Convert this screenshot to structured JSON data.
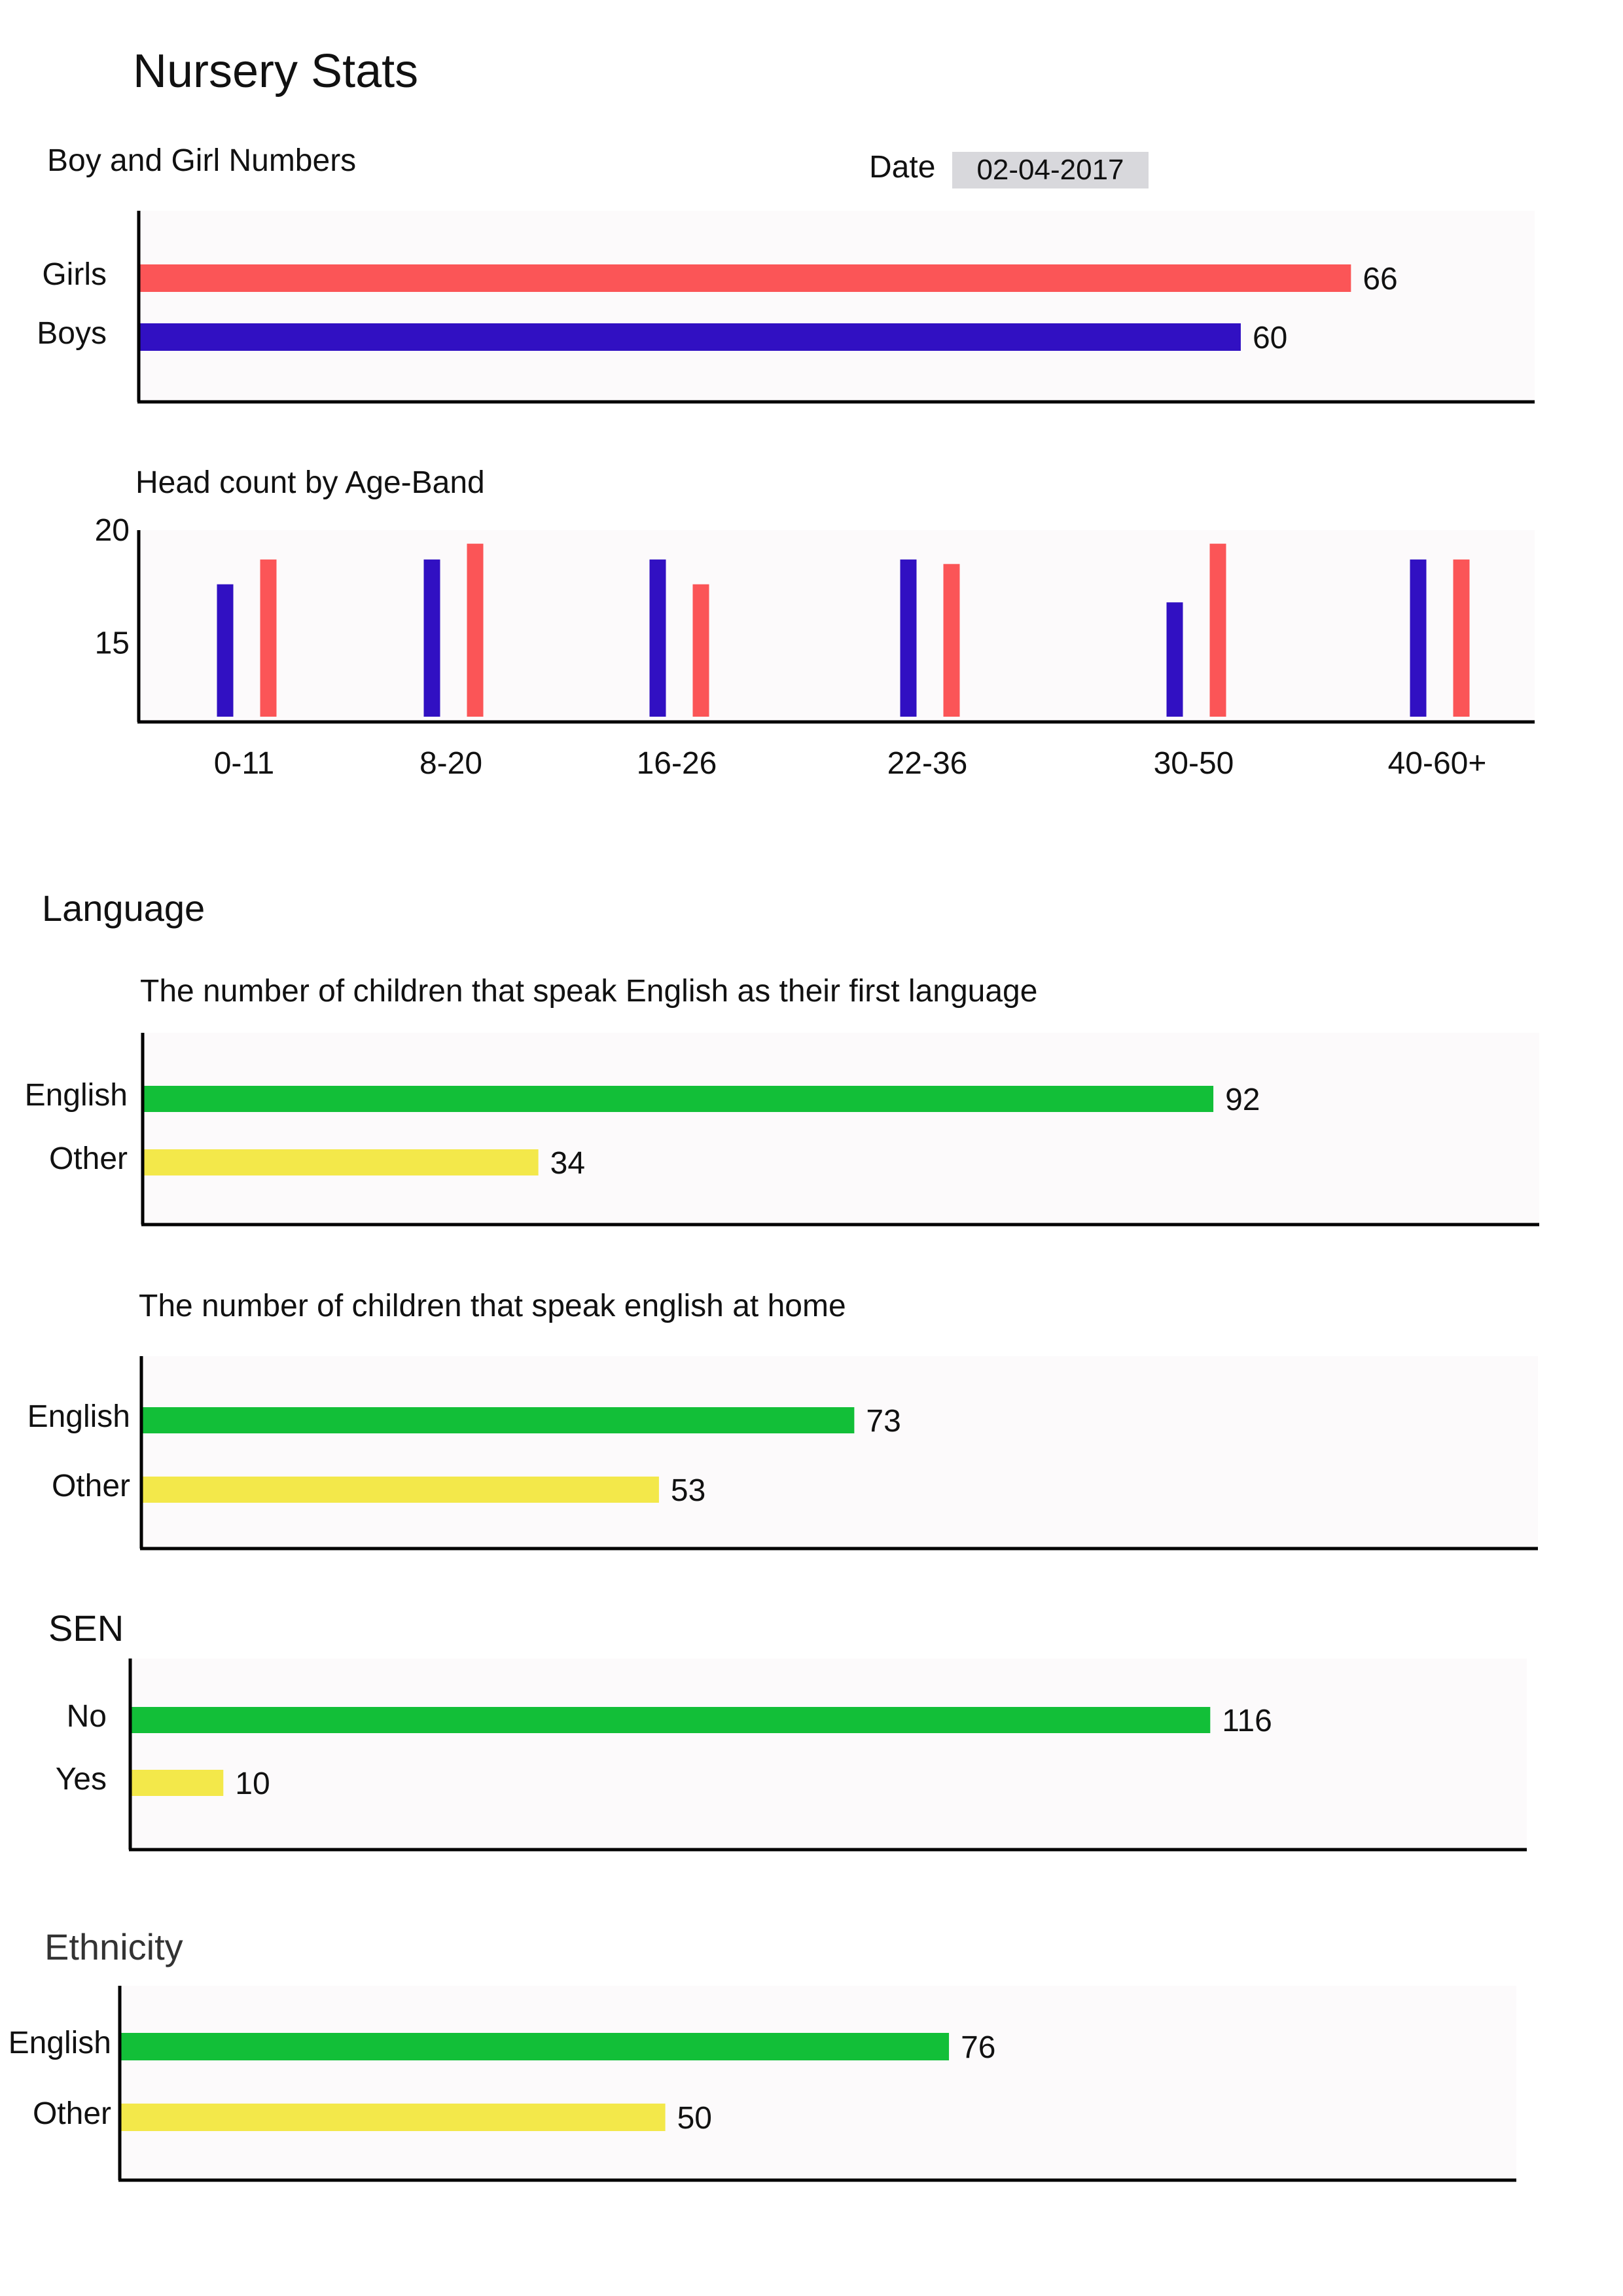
{
  "title": "Nursery Stats",
  "date": {
    "label": "Date",
    "value": "02-04-2017"
  },
  "sections": {
    "language": "Language",
    "sen": "SEN",
    "ethnicity": "Ethnicity"
  },
  "colors": {
    "girls": "#fb5557",
    "boys": "#3110c2",
    "green": "#12bf38",
    "yellow": "#f3e84a",
    "plot_bg": "#fcfafb"
  },
  "chart_data": [
    {
      "id": "gender",
      "type": "bar",
      "orientation": "horizontal",
      "title": "Boy and Girl Numbers",
      "categories": [
        "Girls",
        "Boys"
      ],
      "values": [
        66,
        60
      ],
      "colors": [
        "#fb5557",
        "#3110c2"
      ],
      "xlim": [
        0,
        76
      ]
    },
    {
      "id": "ageband",
      "type": "bar",
      "orientation": "vertical",
      "title": "Head count by Age-Band",
      "categories": [
        "0-11",
        "8-20",
        "16-26",
        "22-36",
        "30-50",
        "40-60+"
      ],
      "series": [
        {
          "color": "#3110c2",
          "values": [
            17.6,
            18.7,
            18.7,
            18.7,
            16.8,
            18.7
          ]
        },
        {
          "color": "#fb5557",
          "values": [
            18.7,
            19.4,
            17.6,
            18.5,
            19.4,
            18.7
          ]
        }
      ],
      "yticks": [
        15,
        20
      ],
      "ylim": [
        11.5,
        20
      ],
      "grid": false
    },
    {
      "id": "first_language",
      "type": "bar",
      "orientation": "horizontal",
      "title": "The number of children that speak English as their first language",
      "categories": [
        "English",
        "Other"
      ],
      "values": [
        92,
        34
      ],
      "colors": [
        "#12bf38",
        "#f3e84a"
      ],
      "xlim": [
        0,
        120
      ]
    },
    {
      "id": "home_language",
      "type": "bar",
      "orientation": "horizontal",
      "title": "The number of children that speak english at home",
      "categories": [
        "English",
        "Other"
      ],
      "values": [
        73,
        53
      ],
      "colors": [
        "#12bf38",
        "#f3e84a"
      ],
      "xlim": [
        0,
        143
      ]
    },
    {
      "id": "sen",
      "type": "bar",
      "orientation": "horizontal",
      "title": "",
      "categories": [
        "No",
        "Yes"
      ],
      "values": [
        116,
        10
      ],
      "colors": [
        "#12bf38",
        "#f3e84a"
      ],
      "xlim": [
        0,
        150
      ]
    },
    {
      "id": "ethnicity",
      "type": "bar",
      "orientation": "horizontal",
      "title": "",
      "categories": [
        "English",
        "Other"
      ],
      "values": [
        76,
        50
      ],
      "colors": [
        "#12bf38",
        "#f3e84a"
      ],
      "xlim": [
        0,
        128
      ]
    }
  ]
}
